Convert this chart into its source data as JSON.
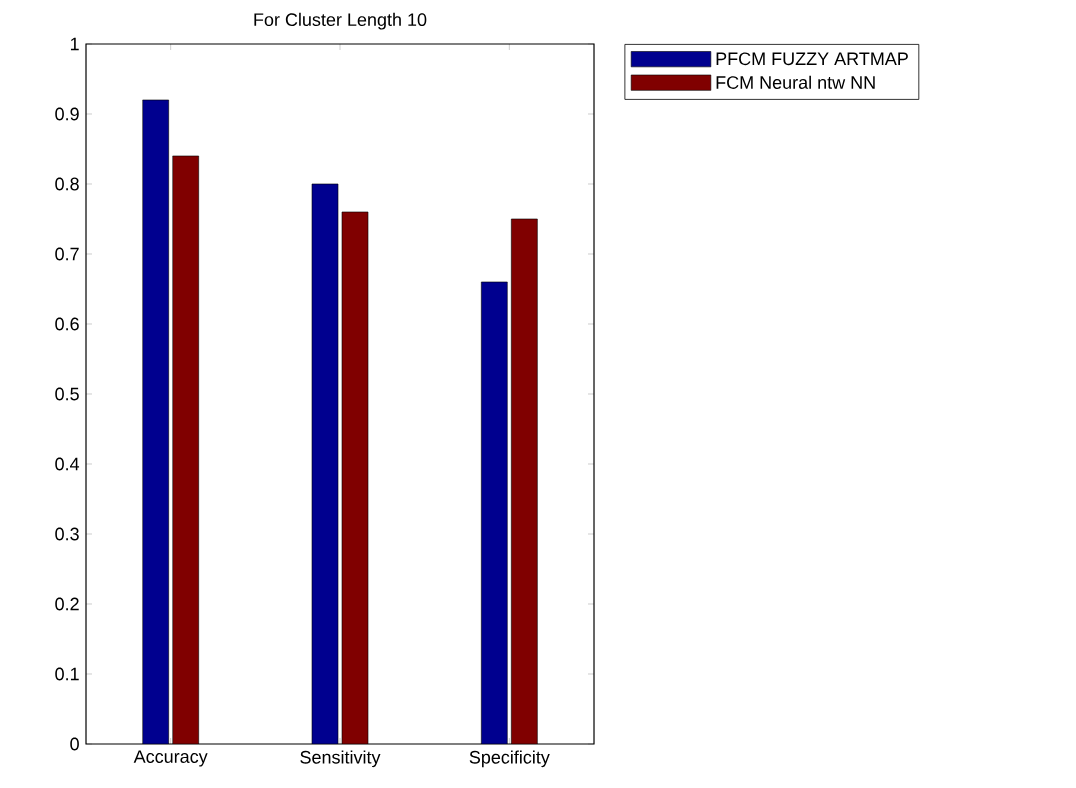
{
  "chart_data": {
    "type": "bar",
    "title": "For Cluster Length 10",
    "categories": [
      "Accuracy",
      "Sensitivity",
      "Specificity"
    ],
    "series": [
      {
        "name": "PFCM FUZZY ARTMAP",
        "color": "#00008f",
        "values": [
          0.92,
          0.8,
          0.66
        ]
      },
      {
        "name": "FCM Neural ntw NN",
        "color": "#800000",
        "values": [
          0.84,
          0.76,
          0.75
        ]
      }
    ],
    "ylim": [
      0,
      1
    ],
    "yticks": [
      0,
      0.1,
      0.2,
      0.3,
      0.4,
      0.5,
      0.6,
      0.7,
      0.8,
      0.9,
      1
    ],
    "grid": false,
    "legend": "top right"
  }
}
